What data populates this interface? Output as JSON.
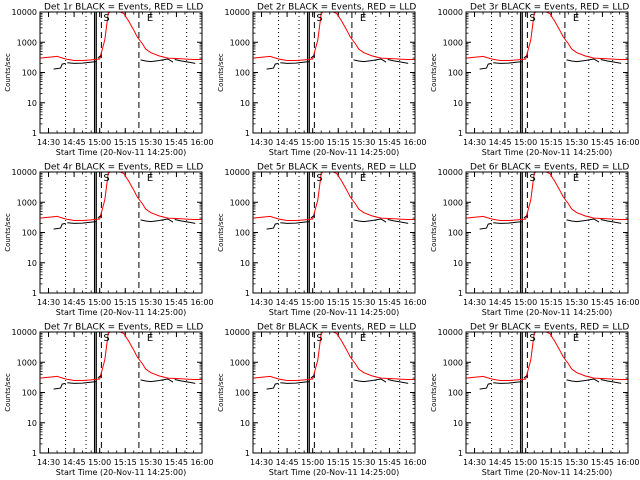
{
  "chart_data": {
    "type": "line",
    "scale": "log",
    "ylim": [
      1,
      10000
    ],
    "xlim": [
      "14:25",
      "16:00"
    ],
    "ylabel": "Counts/sec",
    "xlabel": "Start Time (20-Nov-11 14:25:00)",
    "y_ticks": [
      "1",
      "10",
      "100",
      "1000",
      "10000"
    ],
    "x_ticks": [
      "14:30",
      "14:45",
      "15:00",
      "15:15",
      "15:30",
      "15:45",
      "16:00"
    ],
    "tick_times": [
      "14:30",
      "14:45",
      "15:00",
      "15:15",
      "15:30",
      "15:45",
      "16:00"
    ],
    "dotted_markers": [
      "14:40",
      "14:52",
      "15:37",
      "15:51"
    ],
    "dashed_markers": [
      "15:01",
      "15:23"
    ],
    "solid_markers": [
      "14:57",
      "14:58"
    ],
    "corner_marks": [
      "S",
      "E"
    ],
    "colors": {
      "events": "#000000",
      "lld": "#ff0000"
    },
    "series": [
      {
        "name": "LLD",
        "color": "#ff0000",
        "x": [
          "14:25",
          "14:30",
          "14:35",
          "14:40",
          "14:45",
          "14:50",
          "14:55",
          "15:00",
          "15:03",
          "15:05",
          "15:08",
          "15:10",
          "15:14",
          "15:17",
          "15:20",
          "15:22",
          "15:25",
          "15:27",
          "15:30",
          "15:35",
          "15:40",
          "15:45",
          "15:50",
          "15:55",
          "16:00"
        ],
        "values": [
          300,
          320,
          340,
          280,
          250,
          250,
          260,
          280,
          1200,
          9000,
          12000,
          11000,
          9000,
          5000,
          2500,
          1500,
          900,
          600,
          450,
          350,
          300,
          290,
          280,
          270,
          270
        ]
      },
      {
        "name": "Events",
        "color": "#000000",
        "segments": [
          {
            "x": [
              "14:33",
              "14:37",
              "14:38",
              "14:40"
            ],
            "values": [
              130,
              140,
              190,
              200
            ]
          },
          {
            "x": [
              "14:41",
              "14:45",
              "14:50",
              "14:55",
              "14:58"
            ],
            "values": [
              210,
              200,
              205,
              220,
              230
            ]
          },
          {
            "x": [
              "14:59",
              "15:00",
              "15:01"
            ],
            "values": [
              300,
              340,
              360
            ]
          },
          {
            "x": [
              "15:24",
              "15:27",
              "15:30",
              "15:35",
              "15:40",
              "15:43"
            ],
            "values": [
              260,
              240,
              230,
              250,
              280,
              220
            ]
          },
          {
            "x": [
              "15:44",
              "15:48",
              "15:52",
              "15:56"
            ],
            "values": [
              270,
              240,
              220,
              200
            ]
          }
        ]
      }
    ],
    "panels": [
      {
        "title": "Det 1r  BLACK = Events, RED = LLD"
      },
      {
        "title": "Det 2r  BLACK = Events, RED = LLD"
      },
      {
        "title": "Det 3r  BLACK = Events, RED = LLD"
      },
      {
        "title": "Det 4r  BLACK = Events, RED = LLD"
      },
      {
        "title": "Det 5r  BLACK = Events, RED = LLD"
      },
      {
        "title": "Det 6r  BLACK = Events, RED = LLD"
      },
      {
        "title": "Det 7r  BLACK = Events, RED = LLD"
      },
      {
        "title": "Det 8r  BLACK = Events, RED = LLD"
      },
      {
        "title": "Det 9r  BLACK = Events, RED = LLD"
      }
    ]
  }
}
